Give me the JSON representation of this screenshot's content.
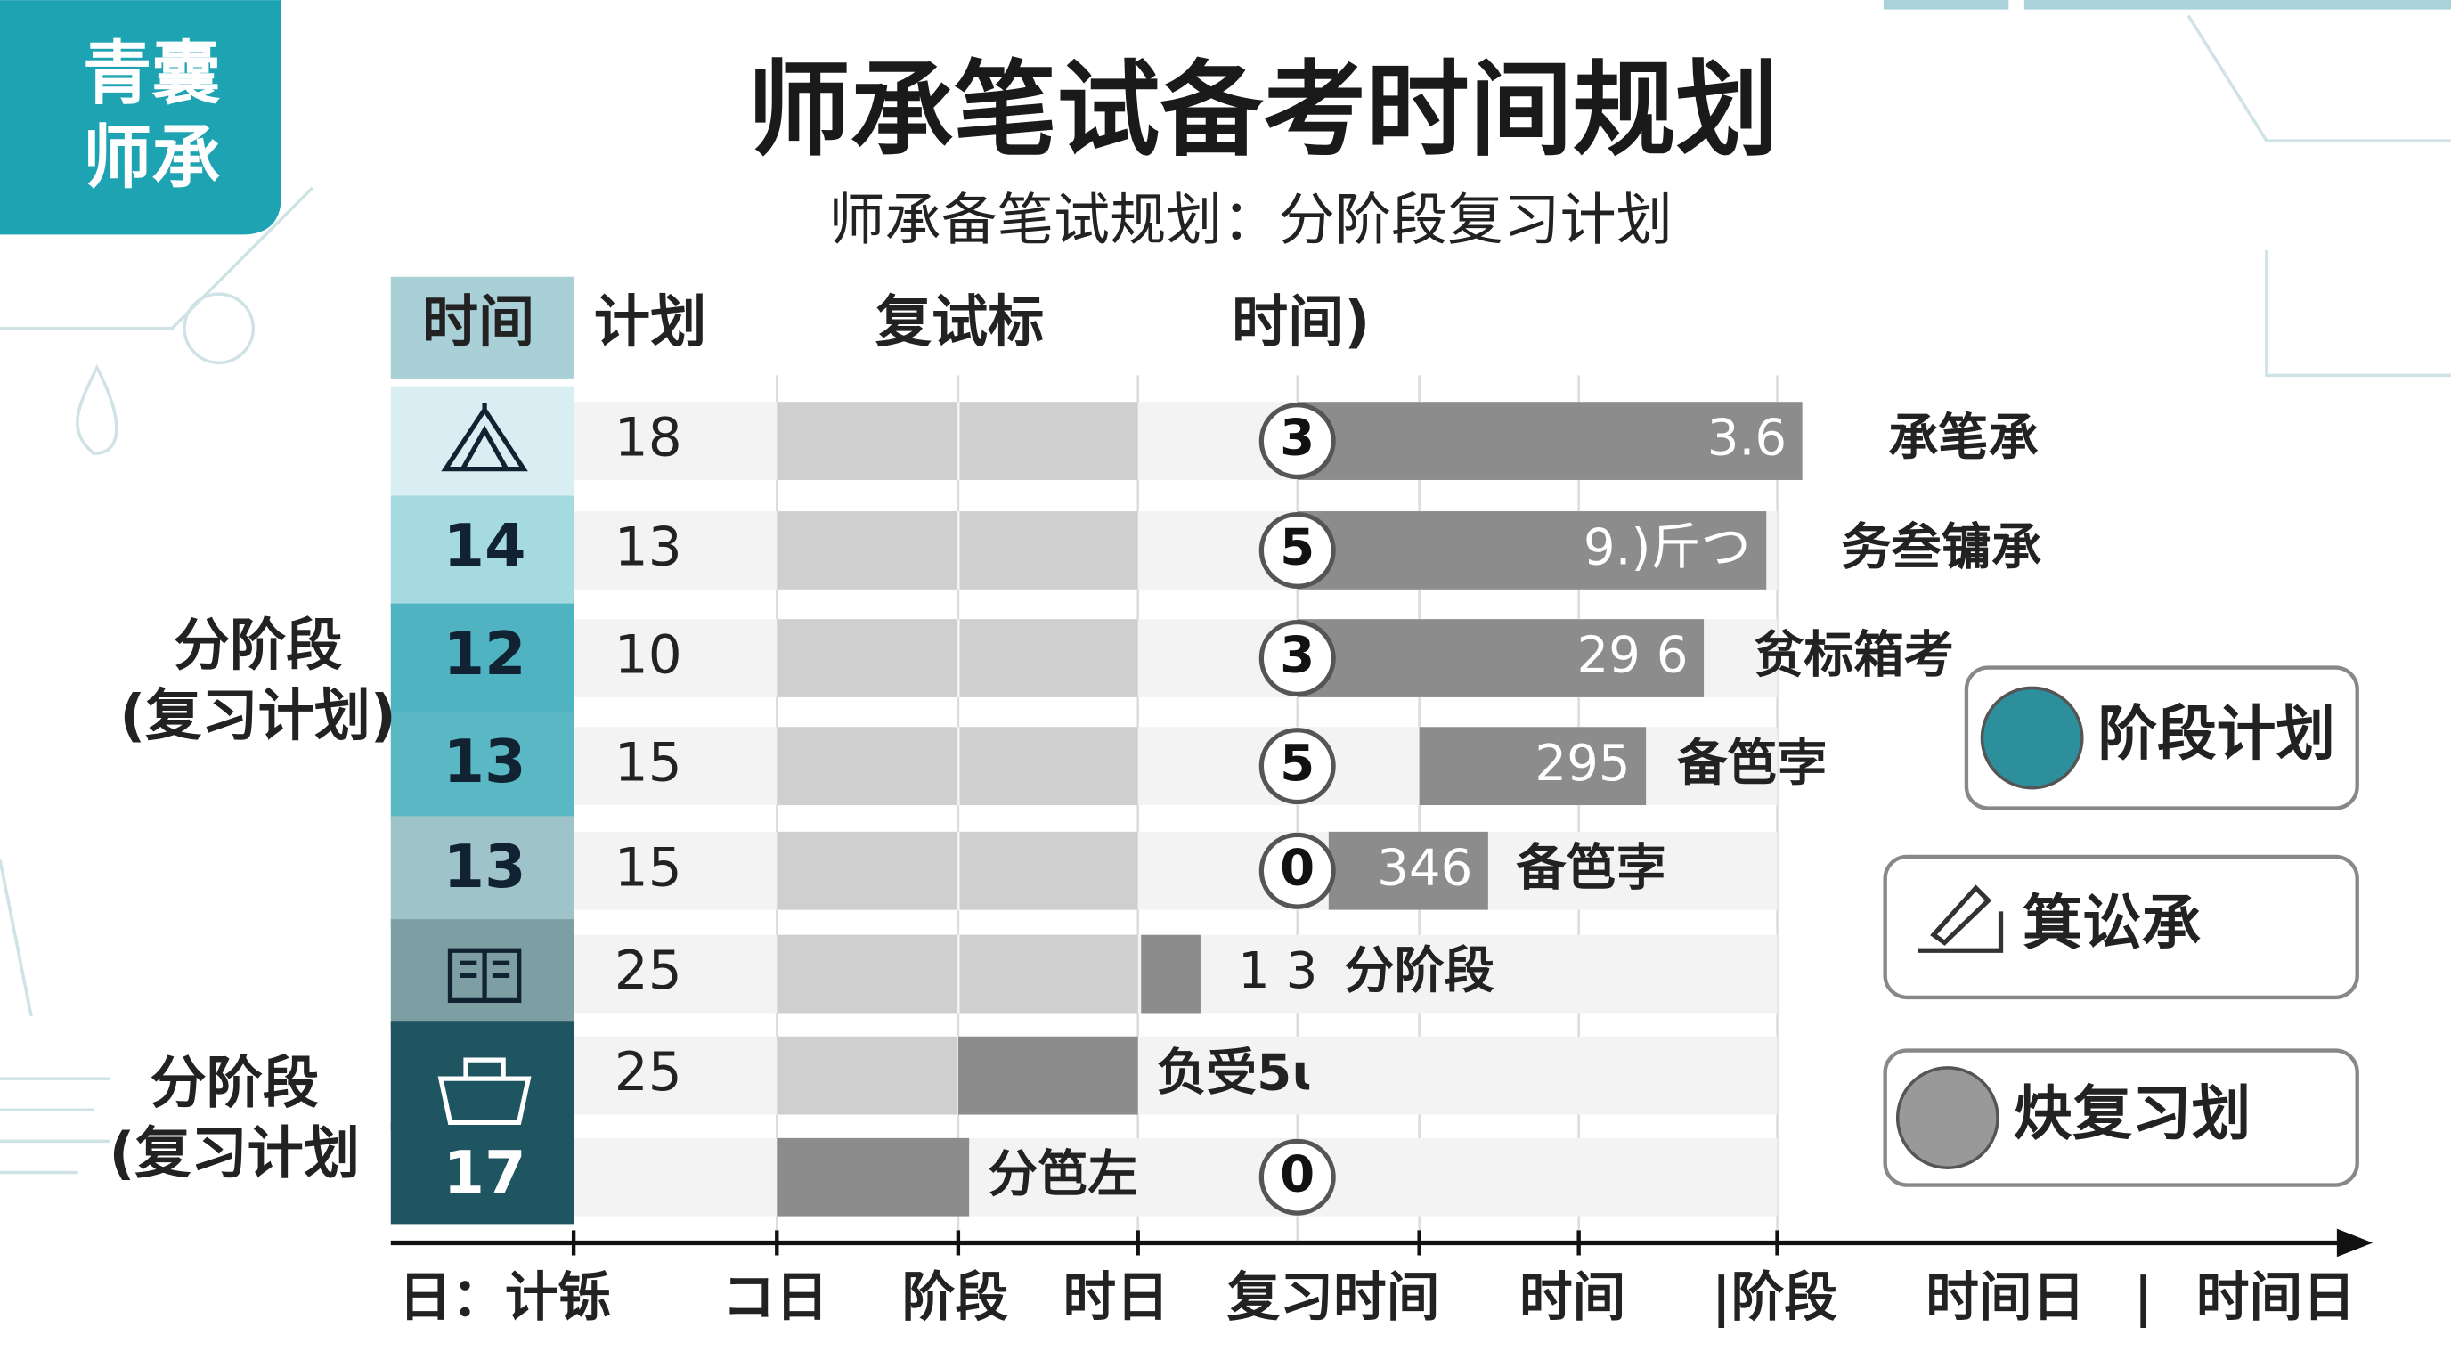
{
  "logo": {
    "line1": "青囊",
    "line2": "师承"
  },
  "title": "师承笔试备考时间规划",
  "subtitle": "师承备笔试规划：分阶段复习计划",
  "table": {
    "headers": [
      "时间",
      "计划",
      "复试标",
      "时间)"
    ],
    "rows": [
      {
        "plan": "18",
        "marker": "3",
        "value": "3.6",
        "note": "承笔承"
      },
      {
        "time": "14",
        "plan": "13",
        "marker": "5",
        "value": "9.)斤つ",
        "note": "务叁镛承"
      },
      {
        "time": "12",
        "plan": "10",
        "marker": "3",
        "value": "29 6",
        "note": "贫标箱考"
      },
      {
        "time": "13",
        "plan": "15",
        "marker": "5",
        "value": "295",
        "note": "备笆孛"
      },
      {
        "time": "13",
        "plan": "15",
        "marker": "0",
        "value": "346",
        "note": "备笆孛"
      },
      {
        "plan": "25",
        "value": "1 3",
        "note": "分阶段"
      },
      {
        "plan": "25",
        "note": "负受5ɩ"
      },
      {
        "time": "17",
        "marker": "0",
        "note": "分笆左"
      }
    ]
  },
  "side_labels": [
    {
      "line1": "分阶段",
      "line2": "(复习计划)"
    },
    {
      "line1": "分阶段",
      "line2": "(复习计划"
    }
  ],
  "buttons": [
    "阶段计划",
    "箕讼承",
    "炔复习划"
  ],
  "x_axis": [
    "日：计铄",
    "コ日",
    "阶段",
    "时日",
    "复习时间",
    "时间",
    "|阶段",
    "时间日",
    "|",
    "时间日"
  ]
}
